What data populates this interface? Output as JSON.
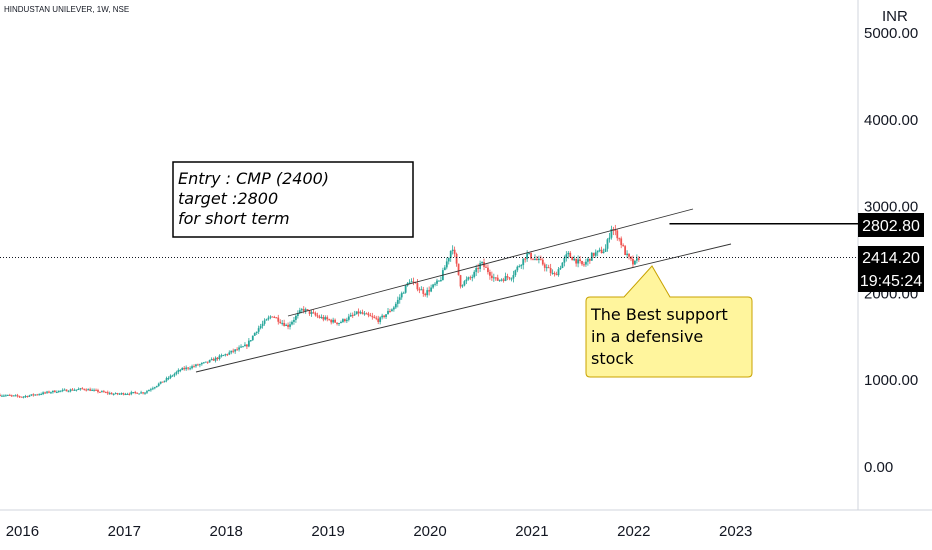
{
  "header": {
    "symbol_line": "HINDUSTAN UNILEVER, 1W, NSE"
  },
  "currency": "INR",
  "price_tags": {
    "level": {
      "value": "2802.80",
      "price": 2802.8
    },
    "last": {
      "value": "2414.20",
      "price": 2414.2
    },
    "timer": "19:45:24"
  },
  "annotations": {
    "entry_box": [
      "Entry : CMP (2400)",
      "target :2800",
      "for short term"
    ],
    "callout": [
      "The Best support",
      "in a defensive",
      "stock"
    ]
  },
  "colors": {
    "up": "#26a69a",
    "down": "#ef5350",
    "callout_fill": "#fff59d",
    "callout_border": "#c8a200"
  },
  "chart_data": {
    "type": "candlestick",
    "title": "HINDUSTAN UNILEVER, 1W, NSE",
    "ylabel": "INR",
    "ylim": [
      -150,
      5000
    ],
    "yticks": [
      0,
      1000,
      2000,
      3000,
      4000,
      5000
    ],
    "ytick_labels": [
      "0.00",
      "1000.00",
      "2000.00",
      "3000.00",
      "4000.00",
      "5000.00"
    ],
    "xlim": [
      2015.78,
      2024.2
    ],
    "xticks": [
      2016,
      2017,
      2018,
      2019,
      2020,
      2021,
      2022,
      2023
    ],
    "xtick_labels": [
      "2016",
      "2017",
      "2018",
      "2019",
      "2020",
      "2021",
      "2022",
      "2023"
    ],
    "grid": false,
    "series": [
      {
        "points": [
          [
            2015.78,
            830
          ],
          [
            2016.0,
            810
          ],
          [
            2016.3,
            870
          ],
          [
            2016.6,
            900
          ],
          [
            2016.9,
            840
          ],
          [
            2017.2,
            860
          ],
          [
            2017.4,
            1000
          ],
          [
            2017.55,
            1120
          ],
          [
            2017.8,
            1200
          ],
          [
            2018.0,
            1300
          ],
          [
            2018.2,
            1400
          ],
          [
            2018.3,
            1580
          ],
          [
            2018.45,
            1750
          ],
          [
            2018.6,
            1620
          ],
          [
            2018.75,
            1820
          ],
          [
            2018.9,
            1730
          ],
          [
            2019.1,
            1660
          ],
          [
            2019.3,
            1780
          ],
          [
            2019.5,
            1690
          ],
          [
            2019.65,
            1850
          ],
          [
            2019.8,
            2150
          ],
          [
            2019.95,
            2000
          ],
          [
            2020.1,
            2150
          ],
          [
            2020.22,
            2550
          ],
          [
            2020.3,
            2100
          ],
          [
            2020.42,
            2200
          ],
          [
            2020.5,
            2350
          ],
          [
            2020.65,
            2150
          ],
          [
            2020.8,
            2200
          ],
          [
            2020.95,
            2450
          ],
          [
            2021.1,
            2350
          ],
          [
            2021.22,
            2200
          ],
          [
            2021.35,
            2450
          ],
          [
            2021.5,
            2320
          ],
          [
            2021.6,
            2450
          ],
          [
            2021.72,
            2500
          ],
          [
            2021.78,
            2760
          ],
          [
            2021.85,
            2650
          ],
          [
            2021.92,
            2450
          ],
          [
            2022.0,
            2330
          ],
          [
            2022.05,
            2414
          ]
        ]
      }
    ],
    "reference_lines": [
      {
        "label": "2414.20",
        "value": 2414.2,
        "style": "dotted"
      },
      {
        "label": "2802.80",
        "value": 2802.8,
        "style": "solid"
      }
    ]
  }
}
